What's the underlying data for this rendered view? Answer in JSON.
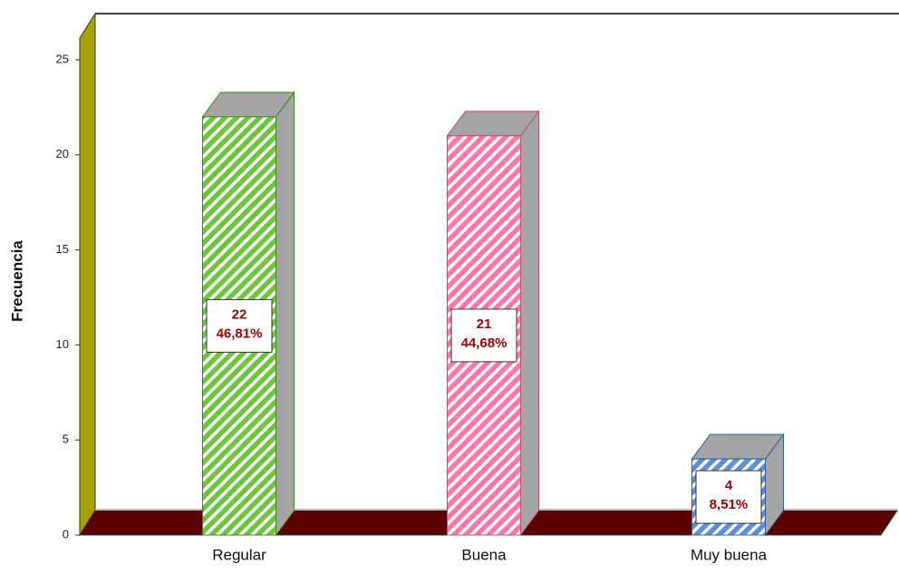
{
  "chart_data": {
    "type": "bar3d",
    "y_label": "Frecuencia",
    "categories": [
      "Regular",
      "Buena",
      "Muy buena"
    ],
    "values": [
      22,
      21,
      4
    ],
    "percentages": [
      46.81,
      44.68,
      8.51
    ],
    "percentage_labels": [
      "46,81%",
      "44,68%",
      "8,51%"
    ],
    "colors": [
      "#6cc63c",
      "#ff77aa",
      "#5b8fd6"
    ],
    "edge_colors": [
      "#3d8a1e",
      "#c0506e",
      "#2e5fa8"
    ],
    "ylim": [
      0,
      26
    ],
    "yticks": [
      0,
      5,
      10,
      15,
      20,
      25
    ]
  }
}
